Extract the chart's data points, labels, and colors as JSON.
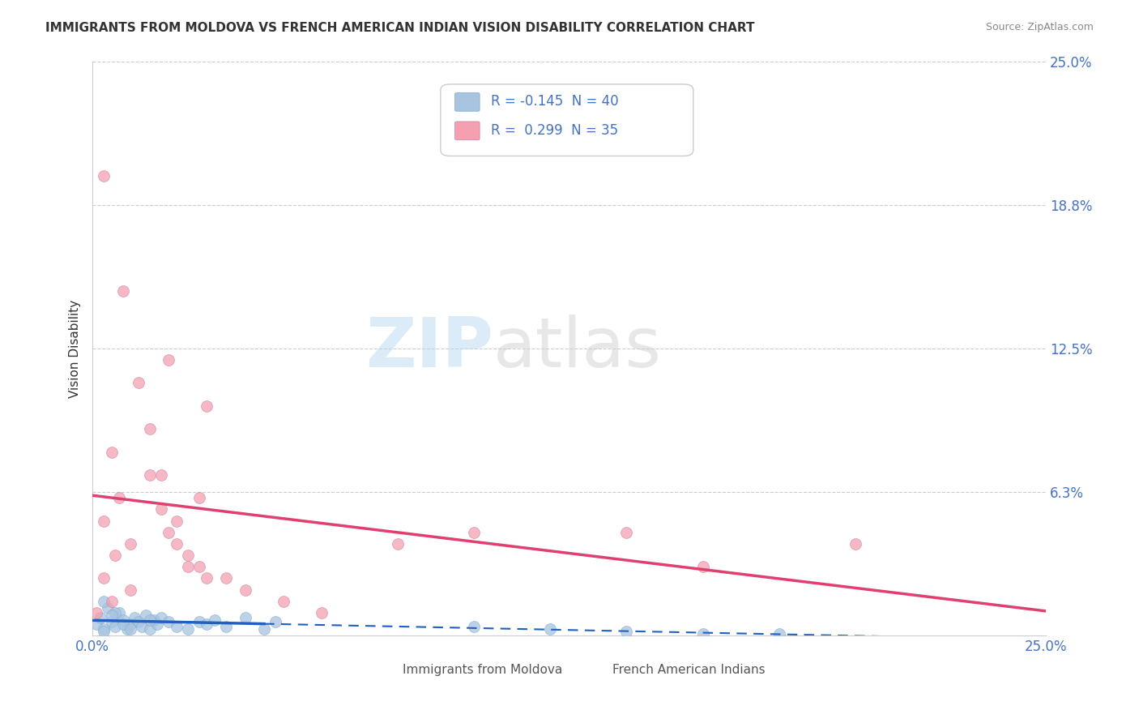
{
  "title": "IMMIGRANTS FROM MOLDOVA VS FRENCH AMERICAN INDIAN VISION DISABILITY CORRELATION CHART",
  "source": "Source: ZipAtlas.com",
  "ylabel": "Vision Disability",
  "xlim": [
    0.0,
    0.25
  ],
  "ylim": [
    0.0,
    0.25
  ],
  "yticks": [
    0.0,
    0.0625,
    0.125,
    0.1875,
    0.25
  ],
  "ytick_labels": [
    "",
    "6.3%",
    "12.5%",
    "18.8%",
    "25.0%"
  ],
  "xtick_labels": [
    "0.0%",
    "25.0%"
  ],
  "legend_R1": "-0.145",
  "legend_N1": "40",
  "legend_R2": "0.299",
  "legend_N2": "35",
  "color_blue": "#a8c4e0",
  "color_pink": "#f4a0b0",
  "line_blue": "#2060c0",
  "line_pink": "#e04070",
  "blue_points": [
    [
      0.001,
      0.005
    ],
    [
      0.002,
      0.008
    ],
    [
      0.003,
      0.003
    ],
    [
      0.004,
      0.012
    ],
    [
      0.005,
      0.006
    ],
    [
      0.006,
      0.004
    ],
    [
      0.007,
      0.01
    ],
    [
      0.008,
      0.007
    ],
    [
      0.009,
      0.003
    ],
    [
      0.01,
      0.005
    ],
    [
      0.011,
      0.008
    ],
    [
      0.012,
      0.006
    ],
    [
      0.013,
      0.004
    ],
    [
      0.014,
      0.009
    ],
    [
      0.015,
      0.003
    ],
    [
      0.016,
      0.007
    ],
    [
      0.017,
      0.005
    ],
    [
      0.018,
      0.008
    ],
    [
      0.02,
      0.006
    ],
    [
      0.022,
      0.004
    ],
    [
      0.025,
      0.003
    ],
    [
      0.028,
      0.006
    ],
    [
      0.03,
      0.005
    ],
    [
      0.032,
      0.007
    ],
    [
      0.035,
      0.004
    ],
    [
      0.04,
      0.008
    ],
    [
      0.045,
      0.003
    ],
    [
      0.048,
      0.006
    ],
    [
      0.003,
      0.015
    ],
    [
      0.006,
      0.01
    ],
    [
      0.008,
      0.005
    ],
    [
      0.01,
      0.003
    ],
    [
      0.015,
      0.007
    ],
    [
      0.1,
      0.004
    ],
    [
      0.12,
      0.003
    ],
    [
      0.14,
      0.002
    ],
    [
      0.16,
      0.001
    ],
    [
      0.18,
      0.001
    ],
    [
      0.003,
      0.002
    ],
    [
      0.005,
      0.009
    ]
  ],
  "pink_points": [
    [
      0.001,
      0.01
    ],
    [
      0.003,
      0.05
    ],
    [
      0.005,
      0.08
    ],
    [
      0.007,
      0.06
    ],
    [
      0.01,
      0.04
    ],
    [
      0.012,
      0.11
    ],
    [
      0.015,
      0.09
    ],
    [
      0.018,
      0.07
    ],
    [
      0.02,
      0.12
    ],
    [
      0.022,
      0.05
    ],
    [
      0.025,
      0.03
    ],
    [
      0.028,
      0.06
    ],
    [
      0.03,
      0.1
    ],
    [
      0.003,
      0.2
    ],
    [
      0.008,
      0.15
    ],
    [
      0.015,
      0.07
    ],
    [
      0.018,
      0.055
    ],
    [
      0.02,
      0.045
    ],
    [
      0.022,
      0.04
    ],
    [
      0.025,
      0.035
    ],
    [
      0.028,
      0.03
    ],
    [
      0.005,
      0.015
    ],
    [
      0.01,
      0.02
    ],
    [
      0.03,
      0.025
    ],
    [
      0.035,
      0.025
    ],
    [
      0.14,
      0.045
    ],
    [
      0.16,
      0.03
    ],
    [
      0.2,
      0.04
    ],
    [
      0.04,
      0.02
    ],
    [
      0.05,
      0.015
    ],
    [
      0.06,
      0.01
    ],
    [
      0.08,
      0.04
    ],
    [
      0.1,
      0.045
    ],
    [
      0.003,
      0.025
    ],
    [
      0.006,
      0.035
    ]
  ]
}
